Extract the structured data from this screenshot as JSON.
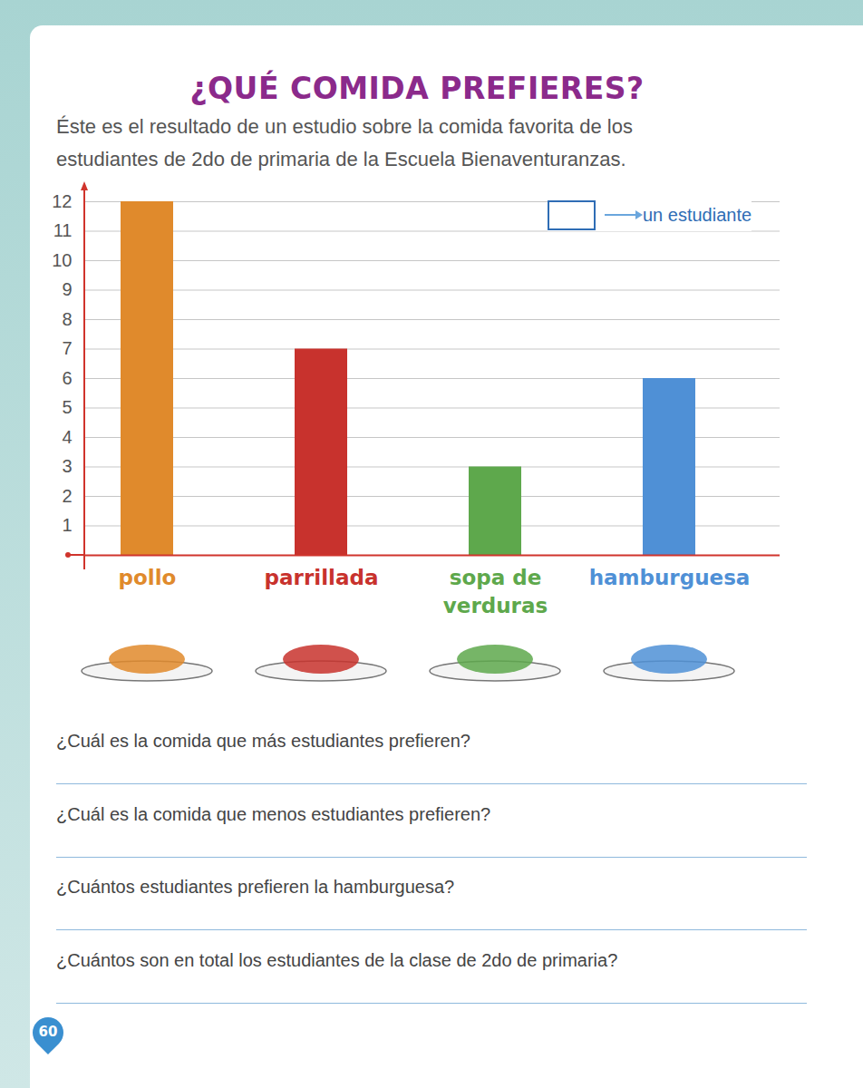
{
  "chart_data": {
    "type": "bar",
    "title": "¿QUÉ COMIDA PREFIERES?",
    "subtitle": "Éste es el resultado de un estudio sobre la comida favorita de los estudiantes de 2do de primaria de la Escuela Bienaventuranzas.",
    "categories": [
      "pollo",
      "parrillada",
      "sopa de verduras",
      "hamburguesa"
    ],
    "values": [
      12,
      7,
      3,
      6
    ],
    "colors": [
      "#e08a2c",
      "#c8322d",
      "#5ea84c",
      "#4f90d6"
    ],
    "ylim": [
      0,
      12
    ],
    "yticks": [
      1,
      2,
      3,
      4,
      5,
      6,
      7,
      8,
      9,
      10,
      11,
      12
    ],
    "grid": true,
    "annotations": [
      "un estudiante"
    ]
  },
  "questions": [
    "¿Cuál es la comida que más estudiantes prefieren?",
    "¿Cuál es la comida que menos estudiantes prefieren?",
    "¿Cuántos estudiantes prefieren la hamburguesa?",
    "¿Cuántos son en total los estudiantes de la clase de 2do de primaria?"
  ],
  "page_number": 60
}
